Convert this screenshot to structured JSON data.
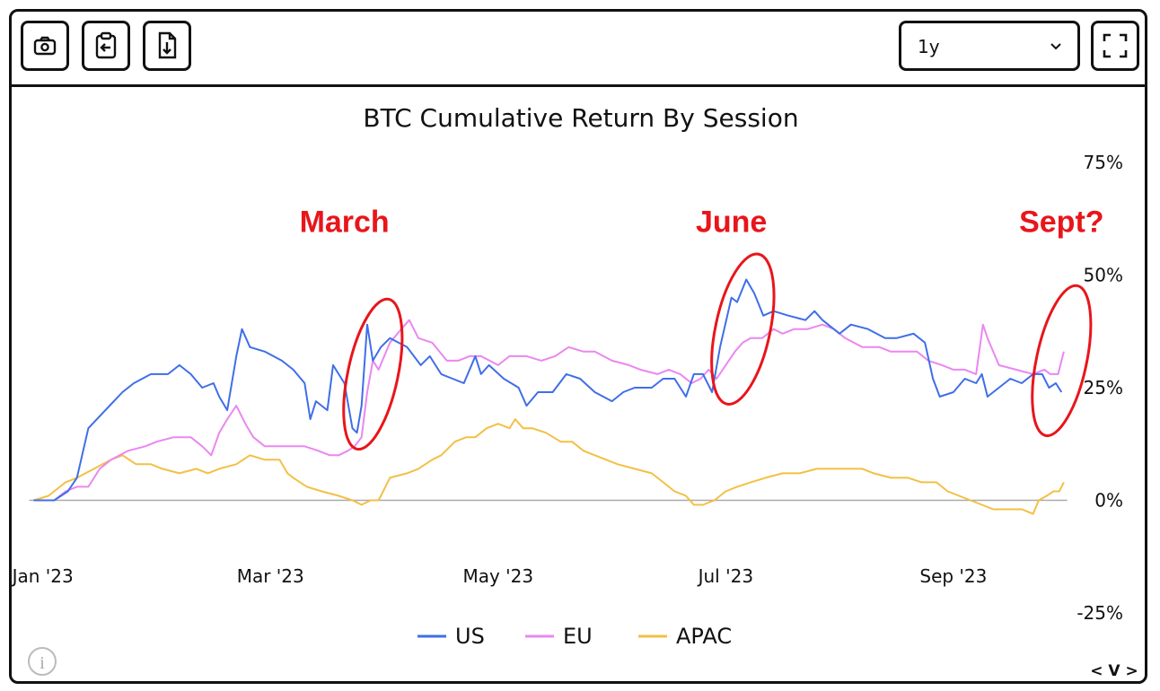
{
  "toolbar": {
    "buttons": [
      {
        "name": "camera-icon"
      },
      {
        "name": "clipboard-icon"
      },
      {
        "name": "download-file-icon"
      }
    ],
    "range_value": "1y",
    "fullscreen_icon": "fullscreen-icon"
  },
  "colors": {
    "US": "#3f6ee8",
    "EU": "#ea87f0",
    "APAC": "#f2c045",
    "annotation": "#e8151b",
    "zero": "#aaaaaa"
  },
  "chart_data": {
    "type": "line",
    "title": "BTC Cumulative Return By Session",
    "y_unit": "percent",
    "ylim": [
      -25,
      75
    ],
    "yticks": [
      75,
      50,
      25,
      0,
      -25
    ],
    "ytick_labels": [
      "75%",
      "50%",
      "25%",
      "0%",
      "-25%"
    ],
    "x_domain": [
      -0.1,
      9.05
    ],
    "xticks": [
      {
        "x": 0,
        "label": "Jan '23"
      },
      {
        "x": 2,
        "label": "Mar '23"
      },
      {
        "x": 4,
        "label": "May '23"
      },
      {
        "x": 6,
        "label": "Jul '23"
      },
      {
        "x": 8,
        "label": "Sep '23"
      }
    ],
    "x_unit": "months since Jan 1 2023",
    "series": [
      {
        "name": "US",
        "points": [
          [
            -0.2,
            0
          ],
          [
            0.1,
            0
          ],
          [
            0.22,
            2
          ],
          [
            0.3,
            5
          ],
          [
            0.4,
            16
          ],
          [
            0.55,
            20
          ],
          [
            0.7,
            24
          ],
          [
            0.8,
            26
          ],
          [
            0.95,
            28
          ],
          [
            1.1,
            28
          ],
          [
            1.2,
            30
          ],
          [
            1.3,
            28
          ],
          [
            1.4,
            25
          ],
          [
            1.5,
            26
          ],
          [
            1.55,
            23
          ],
          [
            1.62,
            20
          ],
          [
            1.7,
            32
          ],
          [
            1.75,
            38
          ],
          [
            1.82,
            34
          ],
          [
            1.95,
            33
          ],
          [
            2.1,
            31
          ],
          [
            2.2,
            29
          ],
          [
            2.3,
            26
          ],
          [
            2.35,
            18
          ],
          [
            2.4,
            22
          ],
          [
            2.5,
            20
          ],
          [
            2.55,
            30
          ],
          [
            2.65,
            26
          ],
          [
            2.72,
            16
          ],
          [
            2.76,
            15
          ],
          [
            2.8,
            21
          ],
          [
            2.85,
            39
          ],
          [
            2.9,
            31
          ],
          [
            2.97,
            34
          ],
          [
            3.05,
            36
          ],
          [
            3.2,
            34
          ],
          [
            3.32,
            30
          ],
          [
            3.4,
            32
          ],
          [
            3.5,
            28
          ],
          [
            3.6,
            27
          ],
          [
            3.7,
            26
          ],
          [
            3.8,
            32
          ],
          [
            3.85,
            28
          ],
          [
            3.92,
            30
          ],
          [
            4.05,
            27
          ],
          [
            4.18,
            25
          ],
          [
            4.25,
            21
          ],
          [
            4.35,
            24
          ],
          [
            4.48,
            24
          ],
          [
            4.6,
            28
          ],
          [
            4.72,
            27
          ],
          [
            4.85,
            24
          ],
          [
            5.0,
            22
          ],
          [
            5.1,
            24
          ],
          [
            5.2,
            25
          ],
          [
            5.35,
            25
          ],
          [
            5.45,
            27
          ],
          [
            5.55,
            27
          ],
          [
            5.65,
            23
          ],
          [
            5.72,
            28
          ],
          [
            5.8,
            28
          ],
          [
            5.88,
            24
          ],
          [
            5.95,
            34
          ],
          [
            6.05,
            45
          ],
          [
            6.1,
            44
          ],
          [
            6.18,
            49
          ],
          [
            6.25,
            46
          ],
          [
            6.33,
            41
          ],
          [
            6.42,
            42
          ],
          [
            6.55,
            41
          ],
          [
            6.7,
            40
          ],
          [
            6.78,
            42
          ],
          [
            6.85,
            40
          ],
          [
            7.0,
            37
          ],
          [
            7.1,
            39
          ],
          [
            7.25,
            38
          ],
          [
            7.4,
            36
          ],
          [
            7.5,
            36
          ],
          [
            7.65,
            37
          ],
          [
            7.75,
            35
          ],
          [
            7.82,
            27
          ],
          [
            7.88,
            23
          ],
          [
            8.0,
            24
          ],
          [
            8.1,
            27
          ],
          [
            8.2,
            26
          ],
          [
            8.25,
            28
          ],
          [
            8.3,
            23
          ],
          [
            8.4,
            25
          ],
          [
            8.5,
            27
          ],
          [
            8.6,
            26
          ],
          [
            8.7,
            28
          ],
          [
            8.78,
            28
          ],
          [
            8.84,
            25
          ],
          [
            8.9,
            26
          ],
          [
            8.95,
            24
          ]
        ]
      },
      {
        "name": "EU",
        "points": [
          [
            -0.2,
            0
          ],
          [
            0.1,
            0
          ],
          [
            0.2,
            2
          ],
          [
            0.3,
            3
          ],
          [
            0.4,
            3
          ],
          [
            0.5,
            7
          ],
          [
            0.6,
            9
          ],
          [
            0.75,
            11
          ],
          [
            0.9,
            12
          ],
          [
            1.0,
            13
          ],
          [
            1.15,
            14
          ],
          [
            1.3,
            14
          ],
          [
            1.4,
            12
          ],
          [
            1.48,
            10
          ],
          [
            1.55,
            15
          ],
          [
            1.62,
            18
          ],
          [
            1.7,
            21
          ],
          [
            1.78,
            17
          ],
          [
            1.85,
            14
          ],
          [
            1.95,
            12
          ],
          [
            2.1,
            12
          ],
          [
            2.3,
            12
          ],
          [
            2.42,
            11
          ],
          [
            2.52,
            10
          ],
          [
            2.6,
            10
          ],
          [
            2.68,
            11
          ],
          [
            2.74,
            12
          ],
          [
            2.8,
            14
          ],
          [
            2.85,
            24
          ],
          [
            2.9,
            31
          ],
          [
            2.95,
            29
          ],
          [
            3.05,
            35
          ],
          [
            3.15,
            38
          ],
          [
            3.22,
            40
          ],
          [
            3.3,
            36
          ],
          [
            3.42,
            35
          ],
          [
            3.55,
            31
          ],
          [
            3.65,
            31
          ],
          [
            3.75,
            32
          ],
          [
            3.85,
            32
          ],
          [
            4.0,
            30
          ],
          [
            4.1,
            32
          ],
          [
            4.25,
            32
          ],
          [
            4.38,
            31
          ],
          [
            4.5,
            32
          ],
          [
            4.62,
            34
          ],
          [
            4.75,
            33
          ],
          [
            4.85,
            33
          ],
          [
            5.0,
            31
          ],
          [
            5.15,
            30
          ],
          [
            5.25,
            29
          ],
          [
            5.4,
            28
          ],
          [
            5.5,
            29
          ],
          [
            5.6,
            28
          ],
          [
            5.7,
            26
          ],
          [
            5.78,
            27
          ],
          [
            5.85,
            29
          ],
          [
            5.92,
            27
          ],
          [
            6.0,
            30
          ],
          [
            6.08,
            33
          ],
          [
            6.15,
            35
          ],
          [
            6.22,
            36
          ],
          [
            6.32,
            36
          ],
          [
            6.42,
            38
          ],
          [
            6.5,
            37
          ],
          [
            6.6,
            38
          ],
          [
            6.72,
            38
          ],
          [
            6.85,
            39
          ],
          [
            6.95,
            38
          ],
          [
            7.05,
            36
          ],
          [
            7.2,
            34
          ],
          [
            7.35,
            34
          ],
          [
            7.45,
            33
          ],
          [
            7.55,
            33
          ],
          [
            7.68,
            33
          ],
          [
            7.78,
            31
          ],
          [
            7.9,
            30
          ],
          [
            8.0,
            29
          ],
          [
            8.1,
            29
          ],
          [
            8.2,
            28
          ],
          [
            8.26,
            39
          ],
          [
            8.3,
            36
          ],
          [
            8.4,
            30
          ],
          [
            8.55,
            29
          ],
          [
            8.7,
            28
          ],
          [
            8.8,
            29
          ],
          [
            8.85,
            28
          ],
          [
            8.92,
            28
          ],
          [
            8.97,
            33
          ]
        ]
      },
      {
        "name": "APAC",
        "points": [
          [
            -0.2,
            0
          ],
          [
            0.05,
            1
          ],
          [
            0.2,
            4
          ],
          [
            0.3,
            5
          ],
          [
            0.45,
            7
          ],
          [
            0.6,
            9
          ],
          [
            0.7,
            10
          ],
          [
            0.82,
            8
          ],
          [
            0.95,
            8
          ],
          [
            1.05,
            7
          ],
          [
            1.2,
            6
          ],
          [
            1.35,
            7
          ],
          [
            1.45,
            6
          ],
          [
            1.55,
            7
          ],
          [
            1.7,
            8
          ],
          [
            1.82,
            10
          ],
          [
            1.95,
            9
          ],
          [
            2.08,
            9
          ],
          [
            2.15,
            6
          ],
          [
            2.2,
            5
          ],
          [
            2.32,
            3
          ],
          [
            2.45,
            2
          ],
          [
            2.6,
            1
          ],
          [
            2.72,
            0
          ],
          [
            2.8,
            -1
          ],
          [
            2.88,
            0
          ],
          [
            2.95,
            0
          ],
          [
            3.05,
            5
          ],
          [
            3.2,
            6
          ],
          [
            3.3,
            7
          ],
          [
            3.42,
            9
          ],
          [
            3.5,
            10
          ],
          [
            3.62,
            13
          ],
          [
            3.72,
            14
          ],
          [
            3.8,
            14
          ],
          [
            3.9,
            16
          ],
          [
            4.0,
            17
          ],
          [
            4.1,
            16
          ],
          [
            4.15,
            18
          ],
          [
            4.22,
            16
          ],
          [
            4.3,
            16
          ],
          [
            4.42,
            15
          ],
          [
            4.55,
            13
          ],
          [
            4.65,
            13
          ],
          [
            4.75,
            11
          ],
          [
            4.85,
            10
          ],
          [
            4.95,
            9
          ],
          [
            5.05,
            8
          ],
          [
            5.2,
            7
          ],
          [
            5.35,
            6
          ],
          [
            5.45,
            4
          ],
          [
            5.55,
            2
          ],
          [
            5.65,
            1
          ],
          [
            5.72,
            -1
          ],
          [
            5.8,
            -1
          ],
          [
            5.9,
            0
          ],
          [
            6.0,
            2
          ],
          [
            6.1,
            3
          ],
          [
            6.22,
            4
          ],
          [
            6.35,
            5
          ],
          [
            6.5,
            6
          ],
          [
            6.65,
            6
          ],
          [
            6.8,
            7
          ],
          [
            6.9,
            7
          ],
          [
            7.0,
            7
          ],
          [
            7.1,
            7
          ],
          [
            7.2,
            7
          ],
          [
            7.3,
            6
          ],
          [
            7.45,
            5
          ],
          [
            7.6,
            5
          ],
          [
            7.72,
            4
          ],
          [
            7.85,
            4
          ],
          [
            7.95,
            2
          ],
          [
            8.05,
            1
          ],
          [
            8.15,
            0
          ],
          [
            8.25,
            -1
          ],
          [
            8.35,
            -2
          ],
          [
            8.5,
            -2
          ],
          [
            8.6,
            -2
          ],
          [
            8.7,
            -3
          ],
          [
            8.75,
            0
          ],
          [
            8.82,
            1
          ],
          [
            8.88,
            2
          ],
          [
            8.93,
            2
          ],
          [
            8.97,
            4
          ]
        ]
      }
    ],
    "annotations": [
      {
        "label": "March",
        "x": 2.65,
        "y": 62,
        "ellipse": {
          "cx": 2.9,
          "cy": 28,
          "rx": 0.22,
          "ry": 17,
          "tilt": 12
        }
      },
      {
        "label": "June",
        "x": 6.05,
        "y": 62,
        "ellipse": {
          "cx": 6.15,
          "cy": 38,
          "rx": 0.24,
          "ry": 17,
          "tilt": 12
        }
      },
      {
        "label": "Sept?",
        "x": 8.95,
        "y": 62,
        "ellipse": {
          "cx": 8.95,
          "cy": 31,
          "rx": 0.22,
          "ry": 17,
          "tilt": 12
        }
      }
    ],
    "legend": {
      "position": "bottom-center",
      "items": [
        "US",
        "EU",
        "APAC"
      ]
    }
  },
  "footer": {
    "info_icon": "info-icon",
    "nav_label": "< V >"
  }
}
